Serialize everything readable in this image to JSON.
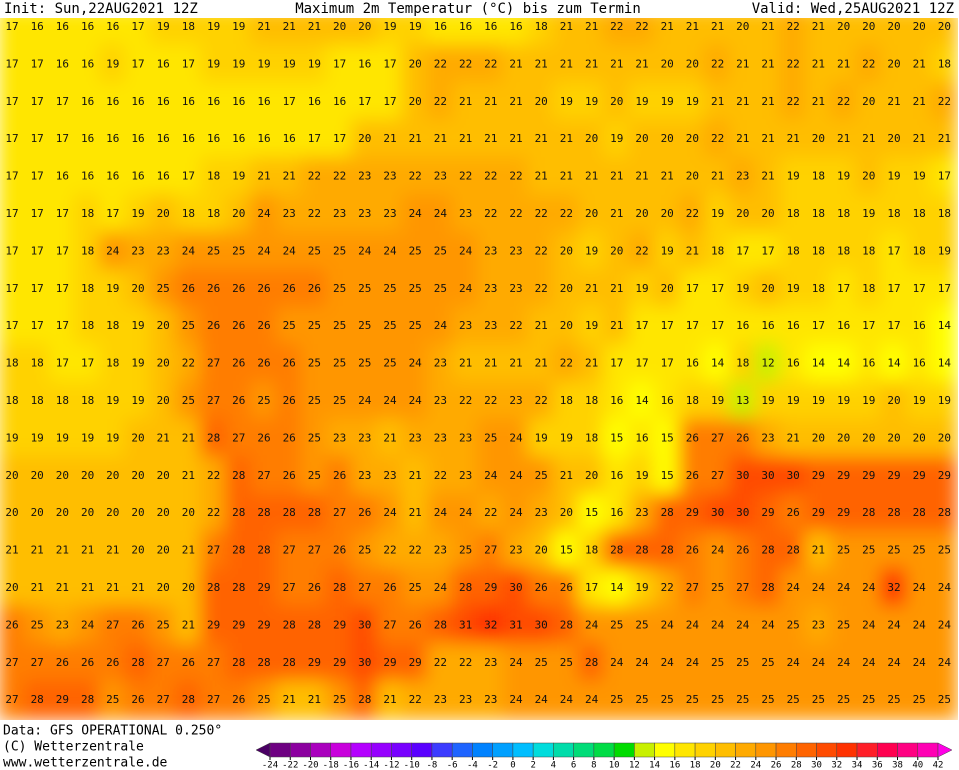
{
  "header": {
    "init": "Init: Sun,22AUG2021 12Z",
    "title": "Maximum 2m Temperatur (°C) bis zum Termin",
    "valid": "Valid: Wed,25AUG2021 12Z"
  },
  "map": {
    "values": [
      [
        17,
        16,
        16,
        16,
        16,
        17,
        19,
        18,
        19,
        19,
        21,
        21,
        21,
        20,
        20,
        19,
        19,
        16,
        16,
        16,
        16,
        18,
        21,
        21,
        22,
        22,
        21,
        21,
        21,
        20,
        21,
        22,
        21,
        20,
        20,
        20,
        20,
        20
      ],
      [
        17,
        17,
        16,
        16,
        19,
        17,
        16,
        17,
        19,
        19,
        19,
        19,
        19,
        17,
        16,
        17,
        20,
        22,
        22,
        22,
        21,
        21,
        21,
        21,
        21,
        21,
        20,
        20,
        22,
        21,
        21,
        22,
        21,
        21,
        22,
        20,
        21,
        18
      ],
      [
        17,
        17,
        17,
        16,
        16,
        16,
        16,
        16,
        16,
        16,
        16,
        17,
        16,
        16,
        17,
        17,
        20,
        22,
        21,
        21,
        21,
        20,
        19,
        19,
        20,
        19,
        19,
        19,
        21,
        21,
        21,
        22,
        21,
        22,
        20,
        21,
        21,
        22
      ],
      [
        17,
        17,
        17,
        16,
        16,
        16,
        16,
        16,
        16,
        16,
        16,
        16,
        17,
        17,
        20,
        21,
        21,
        21,
        21,
        21,
        21,
        21,
        21,
        20,
        19,
        20,
        20,
        20,
        22,
        21,
        21,
        21,
        20,
        21,
        21,
        20,
        21,
        21
      ],
      [
        17,
        17,
        16,
        16,
        16,
        16,
        16,
        17,
        18,
        19,
        21,
        21,
        22,
        22,
        23,
        23,
        22,
        23,
        22,
        22,
        22,
        21,
        21,
        21,
        21,
        21,
        21,
        20,
        21,
        23,
        21,
        19,
        18,
        19,
        20,
        19,
        19,
        17
      ],
      [
        17,
        17,
        17,
        18,
        17,
        19,
        20,
        18,
        18,
        20,
        24,
        23,
        22,
        23,
        23,
        23,
        24,
        24,
        23,
        22,
        22,
        22,
        22,
        20,
        21,
        20,
        20,
        22,
        19,
        20,
        20,
        18,
        18,
        18,
        19,
        18,
        18,
        18
      ],
      [
        17,
        17,
        17,
        18,
        24,
        23,
        23,
        24,
        25,
        25,
        24,
        24,
        25,
        25,
        24,
        24,
        25,
        25,
        24,
        23,
        23,
        22,
        20,
        19,
        20,
        22,
        19,
        21,
        18,
        17,
        17,
        18,
        18,
        18,
        18,
        17,
        18,
        19
      ],
      [
        17,
        17,
        17,
        18,
        19,
        20,
        25,
        26,
        26,
        26,
        26,
        26,
        26,
        25,
        25,
        25,
        25,
        25,
        24,
        23,
        23,
        22,
        20,
        21,
        21,
        19,
        20,
        17,
        17,
        19,
        20,
        19,
        18,
        17,
        18,
        17,
        17,
        17
      ],
      [
        17,
        17,
        17,
        18,
        18,
        19,
        20,
        25,
        26,
        26,
        26,
        25,
        25,
        25,
        25,
        25,
        25,
        24,
        23,
        23,
        22,
        21,
        20,
        19,
        21,
        17,
        17,
        17,
        17,
        16,
        16,
        16,
        17,
        16,
        17,
        17,
        16,
        14
      ],
      [
        18,
        18,
        17,
        17,
        18,
        19,
        20,
        22,
        27,
        26,
        26,
        26,
        25,
        25,
        25,
        25,
        24,
        23,
        21,
        21,
        21,
        21,
        22,
        21,
        17,
        17,
        17,
        16,
        14,
        18,
        12,
        16,
        14,
        14,
        16,
        14,
        16,
        14
      ],
      [
        18,
        18,
        18,
        18,
        19,
        19,
        20,
        25,
        27,
        26,
        25,
        26,
        25,
        25,
        24,
        24,
        24,
        23,
        22,
        22,
        23,
        22,
        18,
        18,
        16,
        14,
        16,
        18,
        19,
        13,
        19,
        19,
        19,
        19,
        19,
        20,
        19,
        19
      ],
      [
        19,
        19,
        19,
        19,
        19,
        20,
        21,
        21,
        28,
        27,
        26,
        26,
        25,
        23,
        23,
        21,
        23,
        23,
        23,
        25,
        24,
        19,
        19,
        18,
        15,
        16,
        15,
        26,
        27,
        26,
        23,
        21,
        20,
        20,
        20,
        20,
        20,
        20
      ],
      [
        20,
        20,
        20,
        20,
        20,
        20,
        20,
        21,
        22,
        28,
        27,
        26,
        25,
        26,
        23,
        23,
        21,
        22,
        23,
        24,
        24,
        25,
        21,
        20,
        16,
        19,
        15,
        26,
        27,
        30,
        30,
        30,
        29,
        29,
        29,
        29,
        29,
        29
      ],
      [
        20,
        20,
        20,
        20,
        20,
        20,
        20,
        20,
        22,
        28,
        28,
        28,
        28,
        27,
        26,
        24,
        21,
        24,
        24,
        22,
        24,
        23,
        20,
        15,
        16,
        23,
        28,
        29,
        30,
        30,
        29,
        26,
        29,
        29,
        28,
        28,
        28,
        28
      ],
      [
        21,
        21,
        21,
        21,
        21,
        20,
        20,
        21,
        27,
        28,
        28,
        27,
        27,
        26,
        25,
        22,
        22,
        23,
        25,
        27,
        23,
        20,
        15,
        18,
        28,
        28,
        28,
        26,
        24,
        26,
        28,
        28,
        21,
        25,
        25,
        25,
        25,
        25
      ],
      [
        20,
        21,
        21,
        21,
        21,
        21,
        20,
        20,
        28,
        28,
        29,
        27,
        26,
        28,
        27,
        26,
        25,
        24,
        28,
        29,
        30,
        26,
        26,
        17,
        14,
        19,
        22,
        27,
        25,
        27,
        28,
        24,
        24,
        24,
        24,
        32,
        24,
        24
      ],
      [
        26,
        25,
        23,
        24,
        27,
        26,
        25,
        21,
        29,
        29,
        29,
        28,
        28,
        29,
        30,
        27,
        26,
        28,
        31,
        32,
        31,
        30,
        28,
        24,
        25,
        25,
        24,
        24,
        24,
        24,
        24,
        25,
        23,
        25,
        24,
        24,
        24,
        24
      ],
      [
        27,
        27,
        26,
        26,
        26,
        28,
        27,
        26,
        27,
        28,
        28,
        28,
        29,
        29,
        30,
        29,
        29,
        22,
        22,
        23,
        24,
        25,
        25,
        28,
        24,
        24,
        24,
        24,
        25,
        25,
        25,
        24,
        24,
        24,
        24,
        24,
        24,
        24
      ],
      [
        27,
        28,
        29,
        28,
        25,
        26,
        27,
        28,
        27,
        26,
        25,
        21,
        21,
        25,
        28,
        21,
        22,
        23,
        23,
        23,
        24,
        24,
        24,
        24,
        25,
        25,
        25,
        25,
        25,
        25,
        25,
        25,
        25,
        25,
        25,
        25,
        25,
        25
      ]
    ]
  },
  "colorbar": {
    "ticks": [
      -24,
      -22,
      -20,
      -18,
      -16,
      -14,
      -12,
      -10,
      -8,
      -6,
      -4,
      -2,
      0,
      2,
      4,
      6,
      8,
      10,
      12,
      14,
      16,
      18,
      20,
      22,
      24,
      26,
      28,
      30,
      32,
      34,
      36,
      38,
      40,
      42
    ],
    "colors": [
      "#4a0064",
      "#6e0082",
      "#8c00a0",
      "#aa00be",
      "#c800dc",
      "#b400ff",
      "#9600ff",
      "#7800ff",
      "#5a00ff",
      "#3c3cff",
      "#1e64ff",
      "#0082ff",
      "#00a0ff",
      "#00beff",
      "#00dcdc",
      "#00dcaa",
      "#00dc78",
      "#00dc46",
      "#00dc00",
      "#c8f000",
      "#ffff00",
      "#ffe600",
      "#ffd200",
      "#ffbe00",
      "#ffaa00",
      "#ff9600",
      "#ff7d00",
      "#ff6400",
      "#ff4b00",
      "#ff3200",
      "#ff1e28",
      "#ff0050",
      "#ff0082",
      "#ff00b4",
      "#ff00e6"
    ]
  },
  "footer": {
    "data": "Data: GFS OPERATIONAL 0.250°",
    "copyright": "(C) Wetterzentrale",
    "url": "www.wetterzentrale.de"
  }
}
